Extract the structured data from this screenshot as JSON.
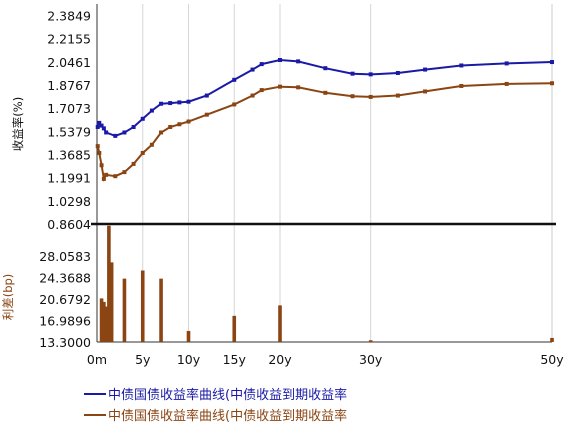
{
  "chart_data": [
    {
      "type": "line",
      "ylabel": "收益率(%)",
      "y_ticks": [
        "2.3849",
        "2.2155",
        "2.0461",
        "1.8767",
        "1.7073",
        "1.5379",
        "1.3685",
        "1.1991",
        "1.0298",
        "0.8604"
      ],
      "ylim": [
        0.8604,
        2.4696
      ],
      "x_ticks": [
        "0m",
        "5y",
        "10y",
        "15y",
        "20y",
        "30y",
        "50y"
      ],
      "xlim": [
        0,
        50
      ],
      "grid": "vertical",
      "legend_position": "bottom",
      "series": [
        {
          "name": "中债国债收益率曲线(中债收益到期收益率",
          "color": "#1a1aa6",
          "points": [
            [
              0.08,
              1.57
            ],
            [
              0.25,
              1.6
            ],
            [
              0.5,
              1.58
            ],
            [
              0.75,
              1.56
            ],
            [
              1,
              1.53
            ],
            [
              2,
              1.505
            ],
            [
              3,
              1.53
            ],
            [
              4,
              1.57
            ],
            [
              5,
              1.63
            ],
            [
              6,
              1.69
            ],
            [
              7,
              1.74
            ],
            [
              8,
              1.745
            ],
            [
              9,
              1.75
            ],
            [
              10,
              1.755
            ],
            [
              12,
              1.8
            ],
            [
              15,
              1.915
            ],
            [
              17,
              1.99
            ],
            [
              18,
              2.03
            ],
            [
              20,
              2.06
            ],
            [
              22,
              2.05
            ],
            [
              25,
              2.0
            ],
            [
              28,
              1.96
            ],
            [
              30,
              1.955
            ],
            [
              33,
              1.965
            ],
            [
              36,
              1.99
            ],
            [
              40,
              2.02
            ],
            [
              45,
              2.035
            ],
            [
              50,
              2.045
            ]
          ]
        },
        {
          "name": "中债国债收益率曲线(中债收益到期收益率",
          "color": "#8b4513",
          "points": [
            [
              0.08,
              1.43
            ],
            [
              0.25,
              1.38
            ],
            [
              0.5,
              1.29
            ],
            [
              0.75,
              1.19
            ],
            [
              1,
              1.22
            ],
            [
              2,
              1.21
            ],
            [
              3,
              1.24
            ],
            [
              4,
              1.3
            ],
            [
              5,
              1.38
            ],
            [
              6,
              1.44
            ],
            [
              7,
              1.53
            ],
            [
              8,
              1.57
            ],
            [
              9,
              1.59
            ],
            [
              10,
              1.61
            ],
            [
              12,
              1.66
            ],
            [
              15,
              1.735
            ],
            [
              17,
              1.8
            ],
            [
              18,
              1.84
            ],
            [
              20,
              1.865
            ],
            [
              22,
              1.86
            ],
            [
              25,
              1.82
            ],
            [
              28,
              1.795
            ],
            [
              30,
              1.79
            ],
            [
              33,
              1.8
            ],
            [
              36,
              1.83
            ],
            [
              40,
              1.87
            ],
            [
              45,
              1.885
            ],
            [
              50,
              1.89
            ]
          ]
        }
      ]
    },
    {
      "type": "bar",
      "ylabel": "利差(bp)",
      "y_ticks": [
        "28.0583",
        "24.3688",
        "20.6792",
        "16.9896",
        "13.3000"
      ],
      "ylim": [
        13.3,
        33.6
      ],
      "bars": [
        {
          "x": 0.5,
          "value": 20.8
        },
        {
          "x": 0.75,
          "value": 20.2
        },
        {
          "x": 1,
          "value": 19.4
        },
        {
          "x": 1.3,
          "value": 33.3
        },
        {
          "x": 1.6,
          "value": 27.0
        },
        {
          "x": 3,
          "value": 24.2
        },
        {
          "x": 5,
          "value": 25.6
        },
        {
          "x": 7,
          "value": 24.2
        },
        {
          "x": 10,
          "value": 15.2
        },
        {
          "x": 15,
          "value": 17.8
        },
        {
          "x": 20,
          "value": 19.6
        },
        {
          "x": 30,
          "value": 13.6
        },
        {
          "x": 50,
          "value": 14.0
        }
      ]
    }
  ],
  "legend": [
    {
      "label": "中债国债收益率曲线(中债收益到期收益率",
      "color": "#1a1aa6"
    },
    {
      "label": "中债国债收益率曲线(中债收益到期收益率",
      "color": "#8b4513"
    }
  ]
}
